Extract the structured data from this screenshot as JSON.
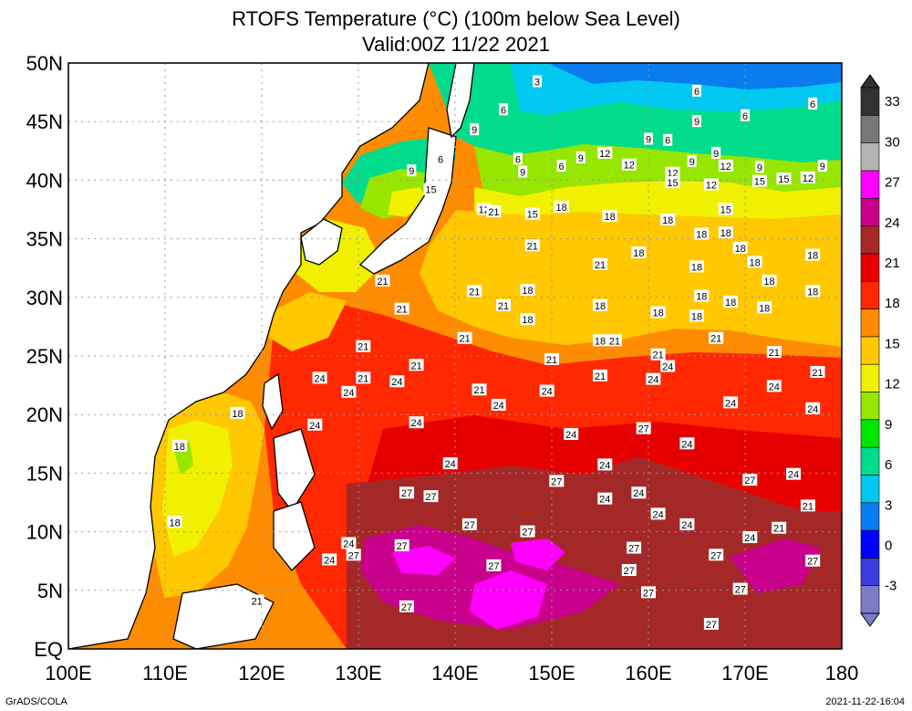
{
  "title": {
    "line1": "RTOFS Temperature (°C) (100m below Sea Level)",
    "line2": "Valid:00Z 11/22 2021"
  },
  "map": {
    "lon_range": [
      100,
      180
    ],
    "lat_range": [
      0,
      50
    ],
    "lon_ticks": [
      "100E",
      "110E",
      "120E",
      "130E",
      "140E",
      "150E",
      "160E",
      "170E",
      "180"
    ],
    "lat_ticks": [
      "EQ",
      "5N",
      "10N",
      "15N",
      "20N",
      "25N",
      "30N",
      "35N",
      "40N",
      "45N",
      "50N"
    ],
    "grid": "dotted"
  },
  "colorbar": {
    "levels": [
      "-3",
      "0",
      "3",
      "6",
      "9",
      "12",
      "15",
      "18",
      "21",
      "24",
      "27",
      "30",
      "33"
    ],
    "colors": [
      "#7b7bc8",
      "#3c3cdc",
      "#0000ff",
      "#0a7cf0",
      "#00c8f0",
      "#00dc8c",
      "#00e600",
      "#96e600",
      "#f0f000",
      "#ffc800",
      "#ff8c00",
      "#ff2800",
      "#e60000",
      "#a52828",
      "#c8008c",
      "#ff00ff",
      "#b4b4b4",
      "#787878",
      "#323232"
    ]
  },
  "contour_labels": [
    {
      "v": "3",
      "lon": 148.5,
      "lat": 48.4
    },
    {
      "v": "6",
      "lon": 165,
      "lat": 47.6
    },
    {
      "v": "6",
      "lon": 145,
      "lat": 46
    },
    {
      "v": "6",
      "lon": 170,
      "lat": 45.5
    },
    {
      "v": "6",
      "lon": 177,
      "lat": 46.5
    },
    {
      "v": "9",
      "lon": 142,
      "lat": 44.3
    },
    {
      "v": "9",
      "lon": 160,
      "lat": 43.5
    },
    {
      "v": "9",
      "lon": 165,
      "lat": 45
    },
    {
      "v": "6",
      "lon": 146.5,
      "lat": 41.8
    },
    {
      "v": "6",
      "lon": 138.5,
      "lat": 41.8
    },
    {
      "v": "9",
      "lon": 135.5,
      "lat": 40.8
    },
    {
      "v": "9",
      "lon": 147,
      "lat": 40.7
    },
    {
      "v": "6",
      "lon": 151,
      "lat": 41.2
    },
    {
      "v": "9",
      "lon": 153,
      "lat": 41.9
    },
    {
      "v": "12",
      "lon": 155.5,
      "lat": 42.3
    },
    {
      "v": "12",
      "lon": 158,
      "lat": 41.3
    },
    {
      "v": "6",
      "lon": 162,
      "lat": 43.4
    },
    {
      "v": "9",
      "lon": 164.5,
      "lat": 41.6
    },
    {
      "v": "9",
      "lon": 167,
      "lat": 42.3
    },
    {
      "v": "12",
      "lon": 162.5,
      "lat": 40.6
    },
    {
      "v": "15",
      "lon": 162.5,
      "lat": 39.8
    },
    {
      "v": "12",
      "lon": 168,
      "lat": 41.2
    },
    {
      "v": "12",
      "lon": 166.5,
      "lat": 39.6
    },
    {
      "v": "9",
      "lon": 171.5,
      "lat": 41.1
    },
    {
      "v": "15",
      "lon": 171.5,
      "lat": 39.9
    },
    {
      "v": "15",
      "lon": 174,
      "lat": 40.1
    },
    {
      "v": "12",
      "lon": 176.5,
      "lat": 40.2
    },
    {
      "v": "9",
      "lon": 178,
      "lat": 41.2
    },
    {
      "v": "15",
      "lon": 137.5,
      "lat": 39.2
    },
    {
      "v": "12",
      "lon": 143,
      "lat": 37.5
    },
    {
      "v": "21",
      "lon": 144,
      "lat": 37.3
    },
    {
      "v": "15",
      "lon": 148,
      "lat": 37.1
    },
    {
      "v": "18",
      "lon": 151,
      "lat": 37.7
    },
    {
      "v": "18",
      "lon": 156,
      "lat": 36.9
    },
    {
      "v": "18",
      "lon": 162,
      "lat": 36.6
    },
    {
      "v": "15",
      "lon": 168,
      "lat": 37.5
    },
    {
      "v": "18",
      "lon": 168,
      "lat": 35.5
    },
    {
      "v": "18",
      "lon": 165.5,
      "lat": 35.4
    },
    {
      "v": "21",
      "lon": 148,
      "lat": 34.4
    },
    {
      "v": "18",
      "lon": 159,
      "lat": 33.8
    },
    {
      "v": "18",
      "lon": 169.5,
      "lat": 34.2
    },
    {
      "v": "18",
      "lon": 177,
      "lat": 33.6
    },
    {
      "v": "21",
      "lon": 155,
      "lat": 32.8
    },
    {
      "v": "18",
      "lon": 165,
      "lat": 32.6
    },
    {
      "v": "18",
      "lon": 171,
      "lat": 33
    },
    {
      "v": "21",
      "lon": 132.5,
      "lat": 31.4
    },
    {
      "v": "21",
      "lon": 142,
      "lat": 30.5
    },
    {
      "v": "18",
      "lon": 147.5,
      "lat": 30.6
    },
    {
      "v": "18",
      "lon": 172.5,
      "lat": 31.4
    },
    {
      "v": "18",
      "lon": 177,
      "lat": 30.5
    },
    {
      "v": "21",
      "lon": 134.5,
      "lat": 29
    },
    {
      "v": "21",
      "lon": 145,
      "lat": 29.3
    },
    {
      "v": "18",
      "lon": 147.5,
      "lat": 28.1
    },
    {
      "v": "18",
      "lon": 155,
      "lat": 29.3
    },
    {
      "v": "18",
      "lon": 161,
      "lat": 28.7
    },
    {
      "v": "18",
      "lon": 165.5,
      "lat": 30.1
    },
    {
      "v": "18",
      "lon": 168.5,
      "lat": 29.6
    },
    {
      "v": "18",
      "lon": 165,
      "lat": 28.4
    },
    {
      "v": "18",
      "lon": 172,
      "lat": 29.1
    },
    {
      "v": "21",
      "lon": 141,
      "lat": 26.5
    },
    {
      "v": "21",
      "lon": 130.5,
      "lat": 25.8
    },
    {
      "v": "18",
      "lon": 155,
      "lat": 26.3
    },
    {
      "v": "21",
      "lon": 156.5,
      "lat": 26.3
    },
    {
      "v": "21",
      "lon": 167,
      "lat": 26.5
    },
    {
      "v": "21",
      "lon": 150,
      "lat": 24.7
    },
    {
      "v": "21",
      "lon": 161,
      "lat": 25.1
    },
    {
      "v": "24",
      "lon": 162,
      "lat": 24.1
    },
    {
      "v": "21",
      "lon": 136,
      "lat": 24.2
    },
    {
      "v": "21",
      "lon": 173,
      "lat": 25.3
    },
    {
      "v": "21",
      "lon": 177.5,
      "lat": 23.6
    },
    {
      "v": "24",
      "lon": 126,
      "lat": 23.1
    },
    {
      "v": "21",
      "lon": 130.5,
      "lat": 23.1
    },
    {
      "v": "24",
      "lon": 134,
      "lat": 22.8
    },
    {
      "v": "21",
      "lon": 155,
      "lat": 23.3
    },
    {
      "v": "24",
      "lon": 160.5,
      "lat": 23
    },
    {
      "v": "21",
      "lon": 142.5,
      "lat": 22.1
    },
    {
      "v": "24",
      "lon": 149.5,
      "lat": 22
    },
    {
      "v": "24",
      "lon": 129,
      "lat": 21.9
    },
    {
      "v": "24",
      "lon": 173,
      "lat": 22.4
    },
    {
      "v": "24",
      "lon": 144.5,
      "lat": 20.8
    },
    {
      "v": "24",
      "lon": 168.5,
      "lat": 21
    },
    {
      "v": "24",
      "lon": 177,
      "lat": 20.5
    },
    {
      "v": "18",
      "lon": 117.5,
      "lat": 20.1
    },
    {
      "v": "24",
      "lon": 125.5,
      "lat": 19.1
    },
    {
      "v": "24",
      "lon": 136,
      "lat": 19.3
    },
    {
      "v": "27",
      "lon": 159.5,
      "lat": 18.8
    },
    {
      "v": "24",
      "lon": 152,
      "lat": 18.3
    },
    {
      "v": "24",
      "lon": 164,
      "lat": 17.5
    },
    {
      "v": "18",
      "lon": 111.5,
      "lat": 17.3
    },
    {
      "v": "24",
      "lon": 139.5,
      "lat": 15.8
    },
    {
      "v": "24",
      "lon": 155.5,
      "lat": 15.7
    },
    {
      "v": "27",
      "lon": 150.5,
      "lat": 14.3
    },
    {
      "v": "27",
      "lon": 170.5,
      "lat": 14.4
    },
    {
      "v": "24",
      "lon": 175,
      "lat": 14.9
    },
    {
      "v": "27",
      "lon": 135,
      "lat": 13.3
    },
    {
      "v": "27",
      "lon": 137.5,
      "lat": 13
    },
    {
      "v": "24",
      "lon": 155.5,
      "lat": 12.8
    },
    {
      "v": "24",
      "lon": 159,
      "lat": 13.3
    },
    {
      "v": "21",
      "lon": 176.5,
      "lat": 12.2
    },
    {
      "v": "24",
      "lon": 161,
      "lat": 11.5
    },
    {
      "v": "18",
      "lon": 111,
      "lat": 10.8
    },
    {
      "v": "27",
      "lon": 141.5,
      "lat": 10.6
    },
    {
      "v": "27",
      "lon": 147.5,
      "lat": 10
    },
    {
      "v": "24",
      "lon": 164,
      "lat": 10.6
    },
    {
      "v": "21",
      "lon": 173.5,
      "lat": 10.3
    },
    {
      "v": "24",
      "lon": 170.5,
      "lat": 9.5
    },
    {
      "v": "24",
      "lon": 129,
      "lat": 9
    },
    {
      "v": "27",
      "lon": 129.5,
      "lat": 8
    },
    {
      "v": "27",
      "lon": 134.5,
      "lat": 8.8
    },
    {
      "v": "24",
      "lon": 127,
      "lat": 7.6
    },
    {
      "v": "27",
      "lon": 158.5,
      "lat": 8.6
    },
    {
      "v": "27",
      "lon": 167,
      "lat": 8
    },
    {
      "v": "27",
      "lon": 144,
      "lat": 7.1
    },
    {
      "v": "27",
      "lon": 177,
      "lat": 7.5
    },
    {
      "v": "27",
      "lon": 158,
      "lat": 6.7
    },
    {
      "v": "27",
      "lon": 160,
      "lat": 4.8
    },
    {
      "v": "27",
      "lon": 169.5,
      "lat": 5.1
    },
    {
      "v": "21",
      "lon": 119.5,
      "lat": 4.1
    },
    {
      "v": "27",
      "lon": 135,
      "lat": 3.6
    },
    {
      "v": "27",
      "lon": 166.5,
      "lat": 2.1
    }
  ],
  "footer": {
    "left": "GrADS/COLA",
    "right": "2021-11-22-16:04"
  }
}
